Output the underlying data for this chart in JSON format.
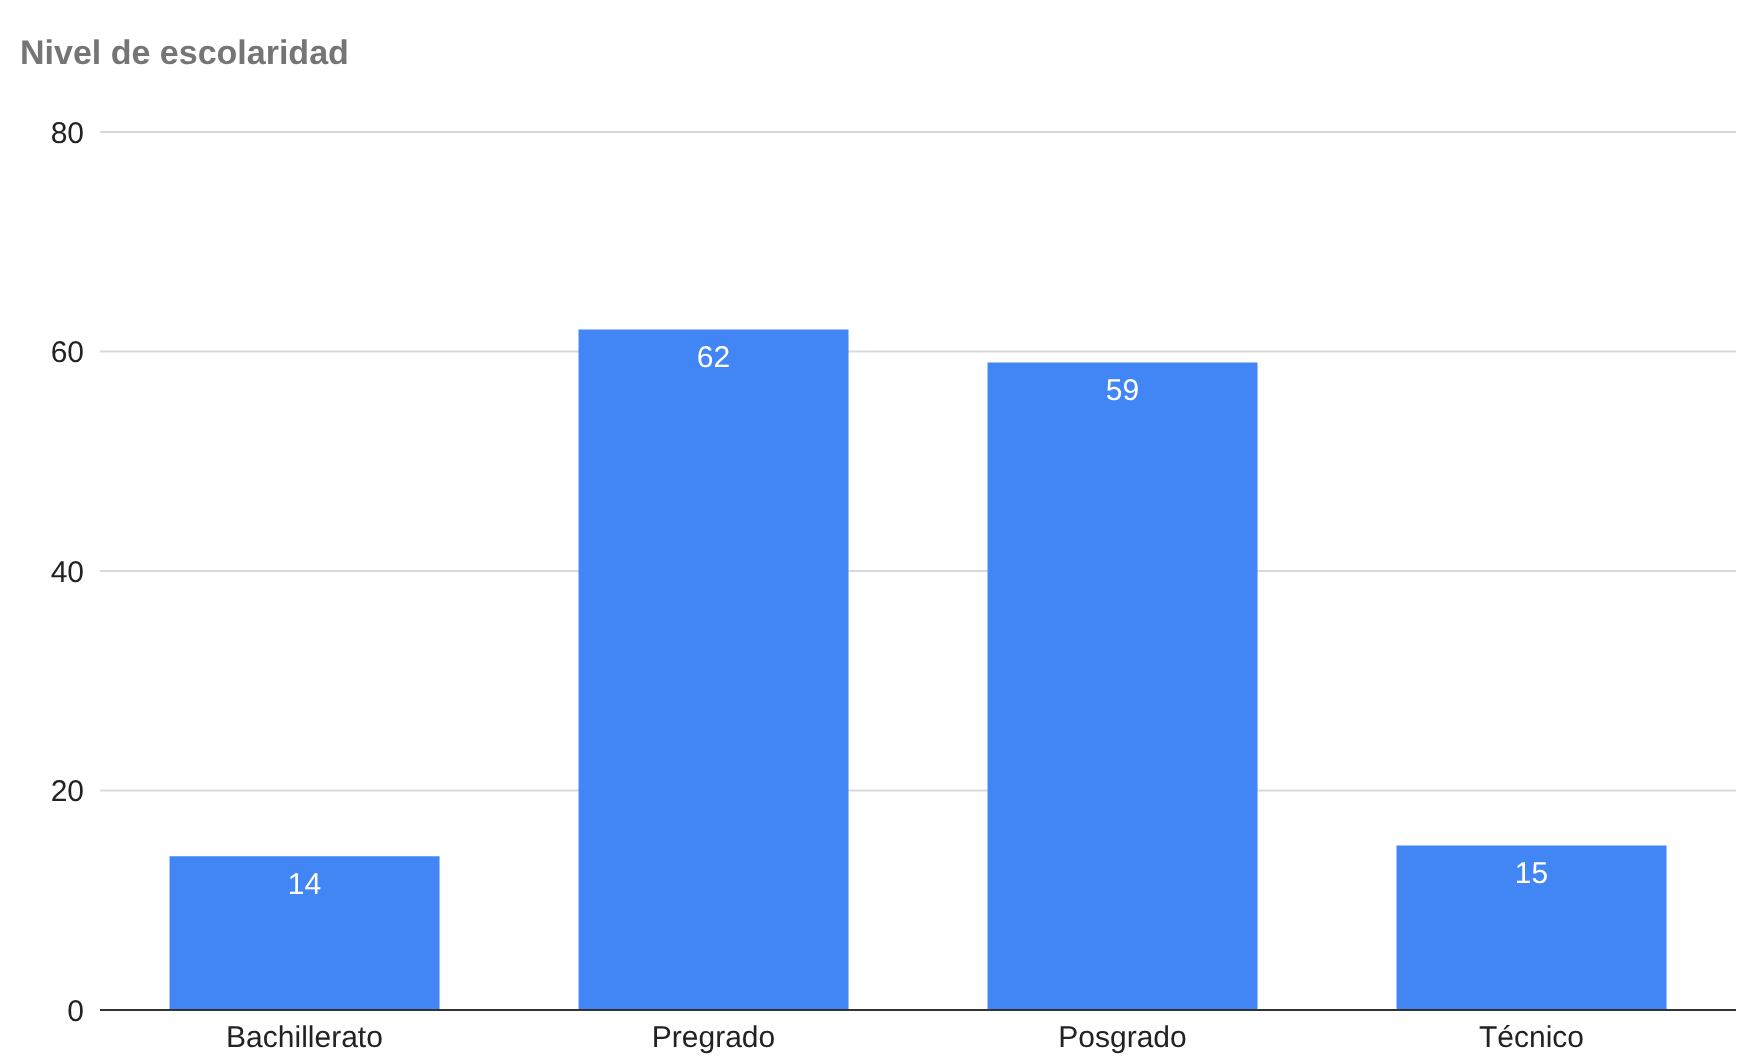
{
  "chart_data": {
    "type": "bar",
    "title": "Nivel de escolaridad",
    "categories": [
      "Bachillerato",
      "Pregrado",
      "Posgrado",
      "Técnico"
    ],
    "values": [
      14,
      62,
      59,
      15
    ],
    "color": "#4285f4",
    "ylim": [
      0,
      80
    ],
    "yticks": [
      0,
      20,
      40,
      60,
      80
    ],
    "grid": "y",
    "data_labels": true
  }
}
